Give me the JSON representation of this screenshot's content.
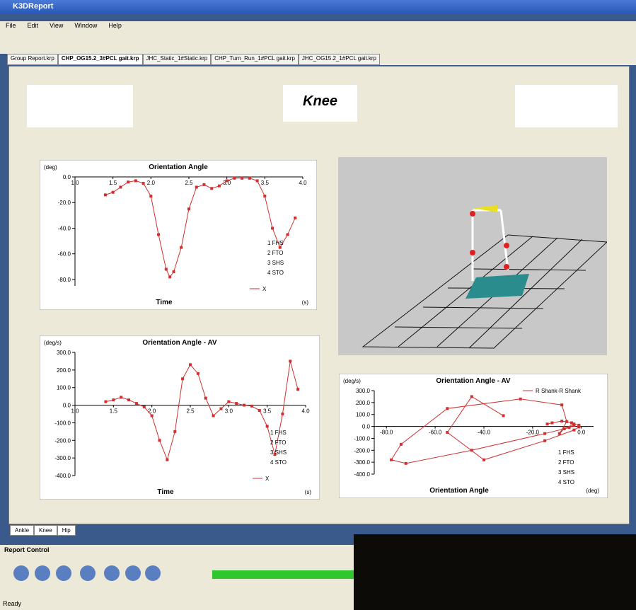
{
  "window": {
    "title": "K3DReport"
  },
  "menu": [
    "File",
    "Edit",
    "View",
    "Window",
    "Help"
  ],
  "tabs": [
    "Group Report.krp",
    "CHP_OG15.2_3#PCL gait.krp",
    "JHC_Static_1#Static.krp",
    "CHP_Turn_Run_1#PCL gait.krp",
    "JHC_OG15.2_1#PCL gait.krp"
  ],
  "report": {
    "title": "Knee"
  },
  "chart_data": [
    {
      "type": "line",
      "title": "Orientation Angle",
      "y_unit": "(deg)",
      "x_label": "Time",
      "x_unit": "(s)",
      "xlim": [
        1,
        4
      ],
      "ylim": [
        -85,
        0
      ],
      "xticks": [
        {
          "value": 1,
          "label": "1.0"
        },
        {
          "value": 1.5,
          "label": "1.5"
        },
        {
          "value": 2,
          "label": "2.0"
        },
        {
          "value": 2.5,
          "label": "2.5"
        },
        {
          "value": 3,
          "label": "3.0"
        },
        {
          "value": 3.5,
          "label": "3.5"
        },
        {
          "value": 4,
          "label": "4.0"
        }
      ],
      "yticks": [
        {
          "value": 0,
          "label": "0.0"
        },
        {
          "value": -20,
          "label": "-20.0"
        },
        {
          "value": -40,
          "label": "-40.0"
        },
        {
          "value": -60,
          "label": "-60.0"
        },
        {
          "value": -80,
          "label": "-80.0"
        }
      ],
      "x": [
        1.4,
        1.5,
        1.6,
        1.7,
        1.8,
        1.9,
        2.0,
        2.1,
        2.2,
        2.25,
        2.3,
        2.4,
        2.5,
        2.6,
        2.7,
        2.8,
        2.9,
        3.0,
        3.1,
        3.2,
        3.3,
        3.4,
        3.5,
        3.6,
        3.7,
        3.8,
        3.9
      ],
      "series": [
        {
          "name": "X",
          "color": "#d03030",
          "values": [
            -14,
            -12,
            -8,
            -4,
            -3,
            -5,
            -15,
            -45,
            -72,
            -78,
            -74,
            -55,
            -25,
            -8,
            -6,
            -9,
            -7,
            -3,
            -1,
            -1,
            -1,
            -3,
            -15,
            -40,
            -55,
            -45,
            -32
          ]
        }
      ],
      "annotations": [
        "1 FHS",
        "2 FTO",
        "3 SHS",
        "4 STO"
      ]
    },
    {
      "type": "line",
      "title": "Orientation Angle - AV",
      "y_unit": "(deg/s)",
      "x_label": "Time",
      "x_unit": "(s)",
      "xlim": [
        1,
        4
      ],
      "ylim": [
        -400,
        300
      ],
      "xticks": [
        {
          "value": 1,
          "label": "1.0"
        },
        {
          "value": 1.5,
          "label": "1.5"
        },
        {
          "value": 2,
          "label": "2.0"
        },
        {
          "value": 2.5,
          "label": "2.5"
        },
        {
          "value": 3,
          "label": "3.0"
        },
        {
          "value": 3.5,
          "label": "3.5"
        },
        {
          "value": 4,
          "label": "4.0"
        }
      ],
      "yticks": [
        {
          "value": 300,
          "label": "300.0"
        },
        {
          "value": 200,
          "label": "200.0"
        },
        {
          "value": 100,
          "label": "100.0"
        },
        {
          "value": 0,
          "label": "0.0"
        },
        {
          "value": -100,
          "label": "-100.0"
        },
        {
          "value": -200,
          "label": "-200.0"
        },
        {
          "value": -300,
          "label": "-300.0"
        },
        {
          "value": -400,
          "label": "-400.0"
        }
      ],
      "x": [
        1.4,
        1.5,
        1.6,
        1.7,
        1.8,
        1.9,
        2.0,
        2.1,
        2.2,
        2.3,
        2.4,
        2.5,
        2.6,
        2.7,
        2.8,
        2.9,
        3.0,
        3.1,
        3.2,
        3.3,
        3.4,
        3.5,
        3.6,
        3.7,
        3.8,
        3.9
      ],
      "series": [
        {
          "name": "X",
          "color": "#d03030",
          "values": [
            20,
            30,
            45,
            30,
            10,
            -10,
            -60,
            -200,
            -310,
            -150,
            150,
            230,
            180,
            40,
            -60,
            -20,
            20,
            10,
            0,
            -5,
            -30,
            -120,
            -280,
            -50,
            250,
            90
          ]
        }
      ],
      "annotations": [
        "1 FHS",
        "2 FTO",
        "3 SHS",
        "4 STO"
      ]
    },
    {
      "type": "line",
      "title": "Orientation Angle - AV",
      "y_unit": "(deg/s)",
      "x_label": "Orientation Angle",
      "x_unit": "(deg)",
      "xlim": [
        -85,
        5
      ],
      "ylim": [
        -400,
        300
      ],
      "xticks": [
        {
          "value": -80,
          "label": "-80.0"
        },
        {
          "value": -60,
          "label": "-60.0"
        },
        {
          "value": -40,
          "label": "-40.0"
        },
        {
          "value": -20,
          "label": "-20.0"
        },
        {
          "value": 0,
          "label": "0.0"
        }
      ],
      "yticks": [
        {
          "value": 300,
          "label": "300.0"
        },
        {
          "value": 200,
          "label": "200.0"
        },
        {
          "value": 100,
          "label": "100.0"
        },
        {
          "value": 0,
          "label": "0.0"
        },
        {
          "value": -100,
          "label": "-100.0"
        },
        {
          "value": -200,
          "label": "-200.0"
        },
        {
          "value": -300,
          "label": "-300.0"
        },
        {
          "value": -400,
          "label": "-400.0"
        }
      ],
      "x": [
        -14,
        -12,
        -8,
        -4,
        -3,
        -5,
        -15,
        -45,
        -72,
        -78,
        -74,
        -55,
        -25,
        -8,
        -6,
        -9,
        -7,
        -3,
        -1,
        -1,
        -1,
        -3,
        -15,
        -40,
        -55,
        -45,
        -32
      ],
      "series": [
        {
          "name": "R Shank-R Shank",
          "color": "#d03030",
          "values": [
            20,
            30,
            45,
            30,
            10,
            -10,
            -60,
            -200,
            -310,
            -280,
            -150,
            150,
            230,
            180,
            40,
            -60,
            -20,
            20,
            10,
            0,
            -5,
            -30,
            -120,
            -280,
            -50,
            250,
            90
          ]
        }
      ],
      "annotations": [
        "1 FHS",
        "2 FTO",
        "3 SHS",
        "4 STO"
      ]
    }
  ],
  "bottom_tabs": [
    "Ankle",
    "Knee",
    "Hip"
  ],
  "report_control": {
    "title": "Report Control"
  },
  "status": "Ready"
}
